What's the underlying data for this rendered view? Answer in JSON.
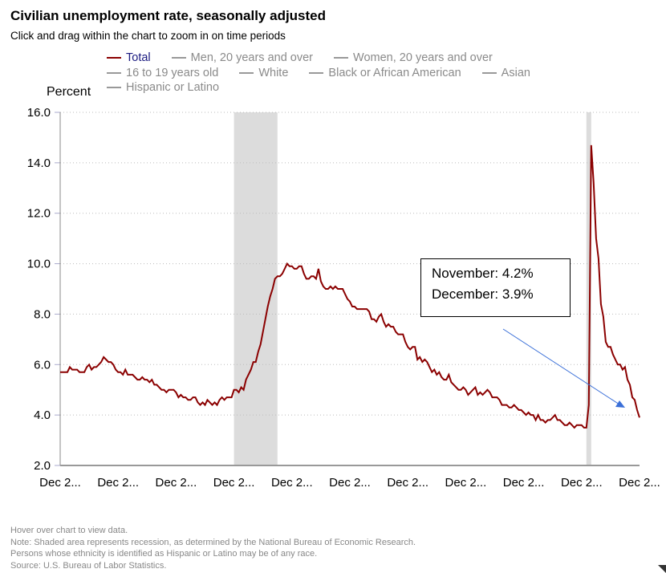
{
  "header": {
    "title": "Civilian unemployment rate, seasonally adjusted",
    "subtitle": "Click and drag within the chart to zoom in on time periods"
  },
  "legend": [
    {
      "label": "Total",
      "color": "#8b0000",
      "active": true
    },
    {
      "label": "Men, 20 years and over"
    },
    {
      "label": "Women, 20 years and over"
    },
    {
      "label": "16 to 19 years old"
    },
    {
      "label": "White"
    },
    {
      "label": "Black or African American"
    },
    {
      "label": "Asian"
    },
    {
      "label": "Hispanic or Latino"
    }
  ],
  "annotation": {
    "line1": "November: 4.2%",
    "line2": "December:  3.9%",
    "arrow_color": "#3a6fd8"
  },
  "notes": [
    "Hover over chart to view data.",
    "Note: Shaded area represents recession, as determined by the National Bureau of Economic Research.",
    "Persons whose ethnicity is identified as Hispanic or Latino may be of any race.",
    "Source: U.S. Bureau of Labor Statistics."
  ],
  "chart_data": {
    "type": "line",
    "ylabel": "Percent",
    "ylim": [
      2,
      16
    ],
    "yticks": [
      "2.0",
      "4.0",
      "6.0",
      "8.0",
      "10.0",
      "12.0",
      "14.0",
      "16.0"
    ],
    "xticks": [
      "Dec 2...",
      "Dec 2...",
      "Dec 2...",
      "Dec 2...",
      "Dec 2...",
      "Dec 2...",
      "Dec 2...",
      "Dec 2...",
      "Dec 2...",
      "Dec 2...",
      "Dec 2..."
    ],
    "xtick_dates": [
      "2001-12",
      "2003-12",
      "2005-12",
      "2007-12",
      "2009-12",
      "2011-12",
      "2013-12",
      "2015-12",
      "2017-12",
      "2019-12",
      "2021-12"
    ],
    "grid": true,
    "recessions": [
      [
        "2007-12",
        "2009-06"
      ],
      [
        "2020-02",
        "2020-04"
      ]
    ],
    "series": [
      {
        "name": "Total",
        "color": "#8b0000",
        "start": "2001-12",
        "values": [
          5.7,
          5.7,
          5.7,
          5.7,
          5.9,
          5.8,
          5.8,
          5.8,
          5.7,
          5.7,
          5.7,
          5.9,
          6.0,
          5.8,
          5.9,
          5.9,
          6.0,
          6.1,
          6.3,
          6.2,
          6.1,
          6.1,
          6.0,
          5.8,
          5.7,
          5.7,
          5.6,
          5.8,
          5.6,
          5.6,
          5.6,
          5.5,
          5.4,
          5.4,
          5.5,
          5.4,
          5.4,
          5.3,
          5.4,
          5.2,
          5.2,
          5.1,
          5.0,
          5.0,
          4.9,
          5.0,
          5.0,
          5.0,
          4.9,
          4.7,
          4.8,
          4.7,
          4.7,
          4.6,
          4.6,
          4.7,
          4.7,
          4.5,
          4.4,
          4.5,
          4.4,
          4.6,
          4.5,
          4.4,
          4.5,
          4.4,
          4.6,
          4.7,
          4.6,
          4.7,
          4.7,
          4.7,
          5.0,
          5.0,
          4.9,
          5.1,
          5.0,
          5.4,
          5.6,
          5.8,
          6.1,
          6.1,
          6.5,
          6.8,
          7.3,
          7.8,
          8.3,
          8.7,
          9.0,
          9.4,
          9.5,
          9.5,
          9.6,
          9.8,
          10.0,
          9.9,
          9.9,
          9.8,
          9.8,
          9.9,
          9.9,
          9.6,
          9.4,
          9.4,
          9.5,
          9.5,
          9.4,
          9.8,
          9.3,
          9.1,
          9.0,
          9.0,
          9.1,
          9.0,
          9.1,
          9.0,
          9.0,
          9.0,
          8.8,
          8.6,
          8.5,
          8.3,
          8.3,
          8.2,
          8.2,
          8.2,
          8.2,
          8.2,
          8.1,
          7.8,
          7.8,
          7.7,
          7.9,
          8.0,
          7.7,
          7.5,
          7.6,
          7.5,
          7.5,
          7.3,
          7.2,
          7.2,
          7.2,
          6.9,
          6.7,
          6.6,
          6.7,
          6.7,
          6.2,
          6.3,
          6.1,
          6.2,
          6.1,
          5.9,
          5.7,
          5.8,
          5.6,
          5.7,
          5.5,
          5.4,
          5.4,
          5.6,
          5.3,
          5.2,
          5.1,
          5.0,
          5.0,
          5.1,
          5.0,
          4.8,
          4.9,
          5.0,
          5.1,
          4.8,
          4.9,
          4.8,
          4.9,
          5.0,
          4.9,
          4.7,
          4.7,
          4.7,
          4.6,
          4.4,
          4.4,
          4.4,
          4.3,
          4.3,
          4.4,
          4.3,
          4.2,
          4.2,
          4.1,
          4.0,
          4.1,
          4.0,
          4.0,
          3.8,
          4.0,
          3.8,
          3.8,
          3.7,
          3.8,
          3.8,
          3.9,
          4.0,
          3.8,
          3.8,
          3.7,
          3.6,
          3.6,
          3.7,
          3.6,
          3.5,
          3.6,
          3.6,
          3.6,
          3.5,
          3.5,
          4.4,
          14.7,
          13.2,
          11.0,
          10.2,
          8.4,
          7.9,
          6.9,
          6.7,
          6.7,
          6.4,
          6.2,
          6.0,
          6.0,
          5.8,
          5.9,
          5.4,
          5.2,
          4.7,
          4.6,
          4.2,
          3.9
        ]
      }
    ]
  }
}
